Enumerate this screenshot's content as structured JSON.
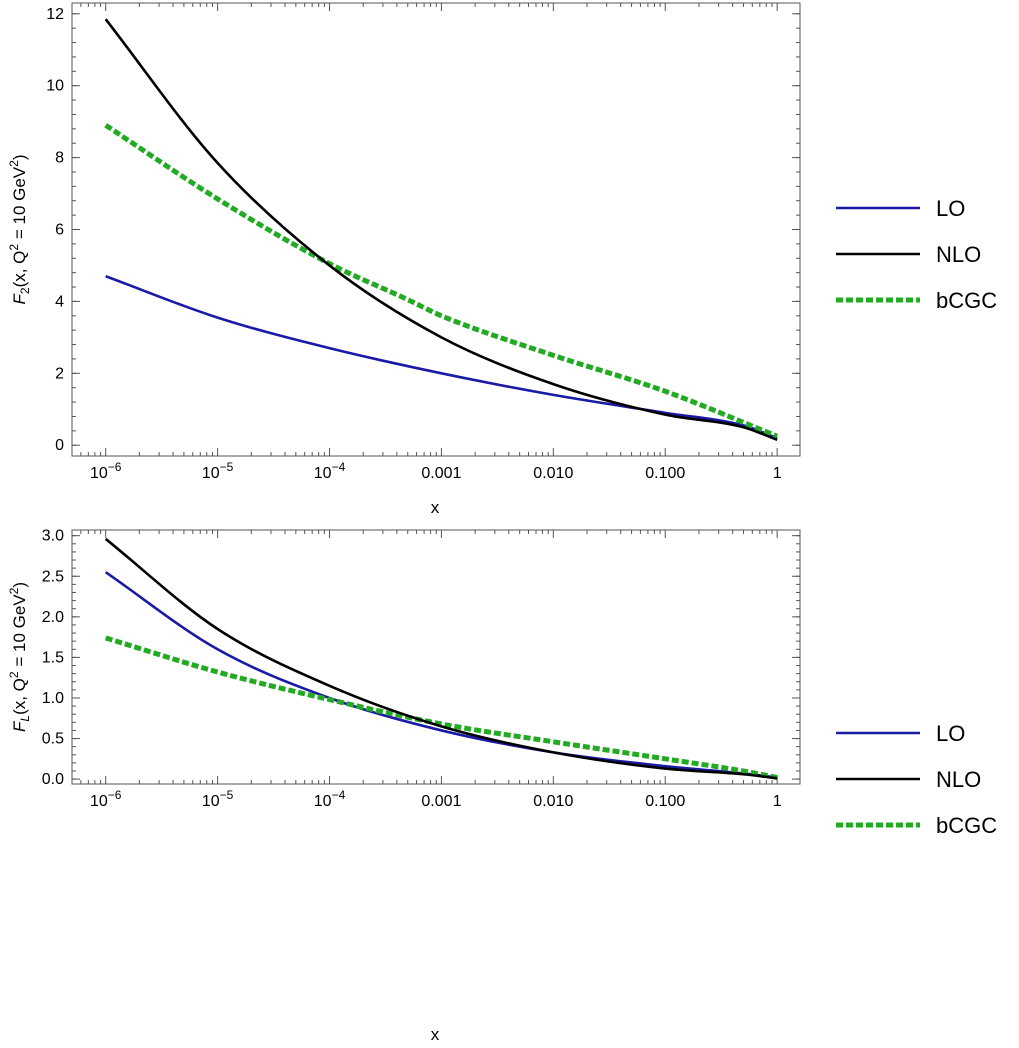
{
  "chart_data": [
    {
      "type": "line",
      "xlabel": "x",
      "ylabel": {
        "main": "F",
        "sub": "2",
        "rest": "(x, Q",
        "sup": "2",
        "mid": " = 10 GeV",
        "sup2": "2",
        "end": ")"
      },
      "xscale": "log",
      "xlim": [
        5e-07,
        1.6
      ],
      "ylim": [
        -0.3,
        12.3
      ],
      "x_ticks": [
        {
          "value": 1e-06,
          "base": "10",
          "exp": "−6"
        },
        {
          "value": 1e-05,
          "base": "10",
          "exp": "−5"
        },
        {
          "value": 0.0001,
          "base": "10",
          "exp": "−4"
        },
        {
          "value": 0.001,
          "label": "0.001"
        },
        {
          "value": 0.01,
          "label": "0.010"
        },
        {
          "value": 0.1,
          "label": "0.100"
        },
        {
          "value": 1,
          "label": "1"
        }
      ],
      "y_ticks": [
        {
          "value": 0,
          "label": "0"
        },
        {
          "value": 2,
          "label": "2"
        },
        {
          "value": 4,
          "label": "4"
        },
        {
          "value": 6,
          "label": "6"
        },
        {
          "value": 8,
          "label": "8"
        },
        {
          "value": 10,
          "label": "10"
        },
        {
          "value": 12,
          "label": "12"
        }
      ],
      "legend_position": "right",
      "series": [
        {
          "name": "LO",
          "color": "#1a1aa6",
          "style": "solid",
          "x": [
            1e-06,
            1e-05,
            0.0001,
            0.001,
            0.01,
            0.1,
            0.5,
            1
          ],
          "y": [
            4.7,
            3.55,
            2.7,
            2.0,
            1.4,
            0.9,
            0.55,
            0.2
          ]
        },
        {
          "name": "NLO",
          "color": "#000000",
          "style": "solid",
          "x": [
            1e-06,
            1e-05,
            0.0001,
            0.001,
            0.01,
            0.1,
            0.5,
            1
          ],
          "y": [
            11.85,
            7.85,
            5.0,
            3.0,
            1.7,
            0.85,
            0.5,
            0.15
          ]
        },
        {
          "name": "bCGC",
          "color": "#22aa22",
          "style": "dashed",
          "x": [
            1e-06,
            1e-05,
            0.0001,
            0.0005,
            0.001,
            0.01,
            0.1,
            1
          ],
          "y": [
            8.9,
            6.85,
            5.05,
            4.05,
            3.6,
            2.5,
            1.5,
            0.25
          ]
        }
      ]
    },
    {
      "type": "line",
      "xlabel": "x",
      "ylabel": {
        "main": "F",
        "sub": "L",
        "rest": "(x, Q",
        "sup": "2",
        "mid": " = 10 GeV",
        "sup2": "2",
        "end": ")"
      },
      "xscale": "log",
      "xlim": [
        5e-07,
        1.6
      ],
      "ylim": [
        -0.06,
        3.07
      ],
      "x_ticks": [
        {
          "value": 1e-06,
          "base": "10",
          "exp": "−6"
        },
        {
          "value": 1e-05,
          "base": "10",
          "exp": "−5"
        },
        {
          "value": 0.0001,
          "base": "10",
          "exp": "−4"
        },
        {
          "value": 0.001,
          "label": "0.001"
        },
        {
          "value": 0.01,
          "label": "0.010"
        },
        {
          "value": 0.1,
          "label": "0.100"
        },
        {
          "value": 1,
          "label": "1"
        }
      ],
      "y_ticks": [
        {
          "value": 0,
          "label": "0.0"
        },
        {
          "value": 0.5,
          "label": "0.5"
        },
        {
          "value": 1.0,
          "label": "1.0"
        },
        {
          "value": 1.5,
          "label": "1.5"
        },
        {
          "value": 2.0,
          "label": "2.0"
        },
        {
          "value": 2.5,
          "label": "2.5"
        },
        {
          "value": 3.0,
          "label": "3.0"
        }
      ],
      "legend_position": "right",
      "series": [
        {
          "name": "LO",
          "color": "#1a1aa6",
          "style": "solid",
          "x": [
            1e-06,
            1e-05,
            0.0001,
            0.001,
            0.01,
            0.1,
            0.5,
            1
          ],
          "y": [
            2.55,
            1.6,
            1.0,
            0.6,
            0.33,
            0.16,
            0.07,
            0.02
          ]
        },
        {
          "name": "NLO",
          "color": "#000000",
          "style": "solid",
          "x": [
            1e-06,
            1e-05,
            0.0001,
            0.001,
            0.01,
            0.1,
            0.5,
            1
          ],
          "y": [
            2.96,
            1.85,
            1.15,
            0.65,
            0.33,
            0.13,
            0.06,
            0.01
          ]
        },
        {
          "name": "bCGC",
          "color": "#22aa22",
          "style": "dashed",
          "x": [
            1e-06,
            1e-05,
            0.0001,
            0.001,
            0.01,
            0.1,
            0.5,
            1
          ],
          "y": [
            1.74,
            1.32,
            0.98,
            0.68,
            0.46,
            0.25,
            0.1,
            0.02
          ]
        }
      ]
    }
  ]
}
